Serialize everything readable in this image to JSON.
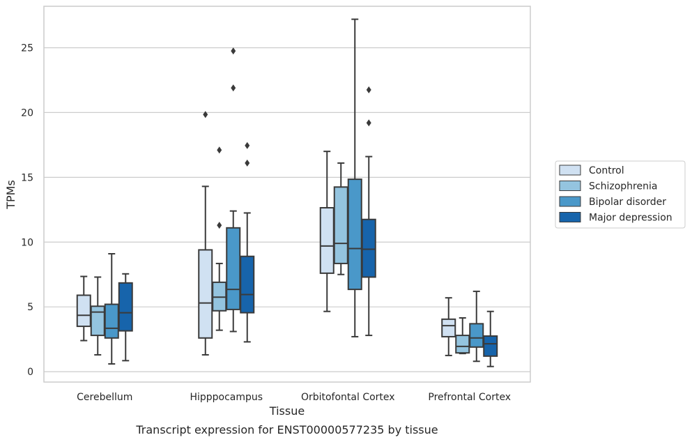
{
  "caption": "Transcript expression for ENST00000577235 by tissue",
  "chart_data": {
    "type": "box",
    "xlabel": "Tissue",
    "ylabel": "TPMs",
    "ylim": [
      -0.8,
      28.2
    ],
    "yticks": [
      0,
      5,
      10,
      15,
      20,
      25
    ],
    "grid": "horizontal",
    "legend_position": "right",
    "categories": [
      "Cerebellum",
      "Hipppocampus",
      "Orbitofontal Cortex",
      "Prefrontal Cortex"
    ],
    "series": [
      {
        "name": "Control",
        "color": "#d0e1f2",
        "boxes": [
          {
            "whislo": 2.4,
            "q1": 3.5,
            "med": 4.35,
            "q3": 5.9,
            "whishi": 7.35,
            "fliers": []
          },
          {
            "whislo": 1.3,
            "q1": 2.6,
            "med": 5.3,
            "q3": 9.4,
            "whishi": 14.3,
            "fliers": [
              19.85
            ]
          },
          {
            "whislo": 4.65,
            "q1": 7.6,
            "med": 9.7,
            "q3": 12.65,
            "whishi": 17.0,
            "fliers": []
          },
          {
            "whislo": 1.25,
            "q1": 2.7,
            "med": 3.55,
            "q3": 4.05,
            "whishi": 5.7,
            "fliers": []
          }
        ]
      },
      {
        "name": "Schizophrenia",
        "color": "#94c4df",
        "boxes": [
          {
            "whislo": 1.3,
            "q1": 2.8,
            "med": 4.6,
            "q3": 5.05,
            "whishi": 7.3,
            "fliers": []
          },
          {
            "whislo": 3.2,
            "q1": 4.7,
            "med": 5.75,
            "q3": 6.9,
            "whishi": 8.35,
            "fliers": [
              11.3,
              17.1
            ]
          },
          {
            "whislo": 7.5,
            "q1": 8.35,
            "med": 9.9,
            "q3": 14.25,
            "whishi": 16.1,
            "fliers": []
          },
          {
            "whislo": 1.4,
            "q1": 1.45,
            "med": 1.95,
            "q3": 2.8,
            "whishi": 4.15,
            "fliers": []
          }
        ]
      },
      {
        "name": "Bipolar disorder",
        "color": "#4a98c9",
        "boxes": [
          {
            "whislo": 0.6,
            "q1": 2.6,
            "med": 3.35,
            "q3": 5.2,
            "whishi": 9.1,
            "fliers": []
          },
          {
            "whislo": 3.1,
            "q1": 4.8,
            "med": 6.35,
            "q3": 11.1,
            "whishi": 12.4,
            "fliers": [
              21.9,
              24.75
            ]
          },
          {
            "whislo": 2.7,
            "q1": 6.35,
            "med": 9.5,
            "q3": 14.85,
            "whishi": 27.2,
            "fliers": []
          },
          {
            "whislo": 0.8,
            "q1": 1.9,
            "med": 2.6,
            "q3": 3.7,
            "whishi": 6.2,
            "fliers": []
          }
        ]
      },
      {
        "name": "Major depression",
        "color": "#1764ab",
        "boxes": [
          {
            "whislo": 0.85,
            "q1": 3.15,
            "med": 4.55,
            "q3": 6.85,
            "whishi": 7.55,
            "fliers": []
          },
          {
            "whislo": 2.3,
            "q1": 4.55,
            "med": 5.95,
            "q3": 8.9,
            "whishi": 12.25,
            "fliers": [
              16.1,
              17.45
            ]
          },
          {
            "whislo": 2.8,
            "q1": 7.3,
            "med": 9.45,
            "q3": 11.75,
            "whishi": 16.6,
            "fliers": [
              19.2,
              21.75
            ]
          },
          {
            "whislo": 0.4,
            "q1": 1.2,
            "med": 2.15,
            "q3": 2.75,
            "whishi": 4.65,
            "fliers": []
          }
        ]
      }
    ]
  }
}
